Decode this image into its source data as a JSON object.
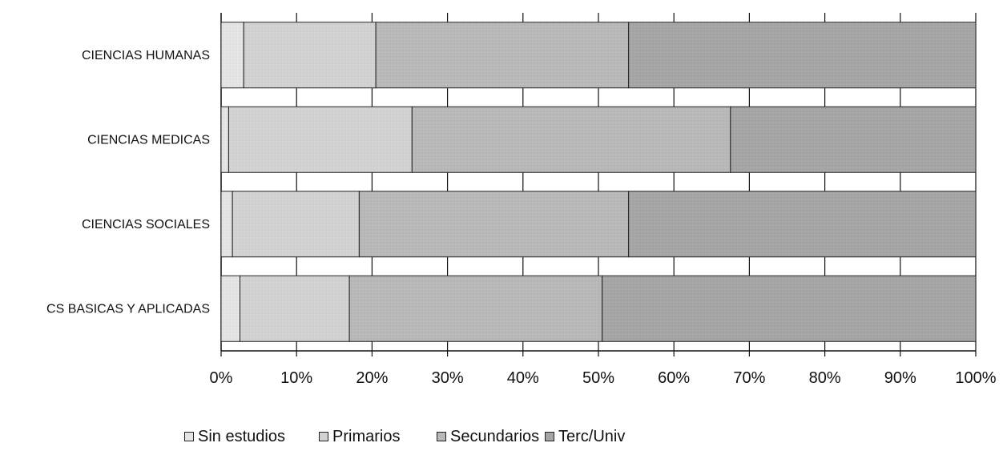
{
  "chart_data": {
    "type": "bar",
    "orientation": "horizontal",
    "stacked": true,
    "percent_stacked": true,
    "categories": [
      "CIENCIAS HUMANAS",
      "CIENCIAS MEDICAS",
      "CIENCIAS SOCIALES",
      "CS BASICAS Y APLICADAS"
    ],
    "series": [
      {
        "name": "Sin estudios",
        "values": [
          3,
          1,
          1.5,
          2.5
        ],
        "color": "#e4e4e4"
      },
      {
        "name": "Primarios",
        "values": [
          17.5,
          24.3,
          16.8,
          14.5
        ],
        "color": "#d2d2d2"
      },
      {
        "name": "Secundarios",
        "values": [
          33.5,
          42.2,
          35.7,
          33.5
        ],
        "color": "#b8b8b8"
      },
      {
        "name": "Terc/Univ",
        "values": [
          46,
          32.5,
          46,
          49.5
        ],
        "color": "#a5a5a5"
      }
    ],
    "x_ticks": [
      "0%",
      "10%",
      "20%",
      "30%",
      "40%",
      "50%",
      "60%",
      "70%",
      "80%",
      "90%",
      "100%"
    ],
    "xlim": [
      0,
      100
    ],
    "grid": "vertical",
    "legend_position": "bottom"
  }
}
